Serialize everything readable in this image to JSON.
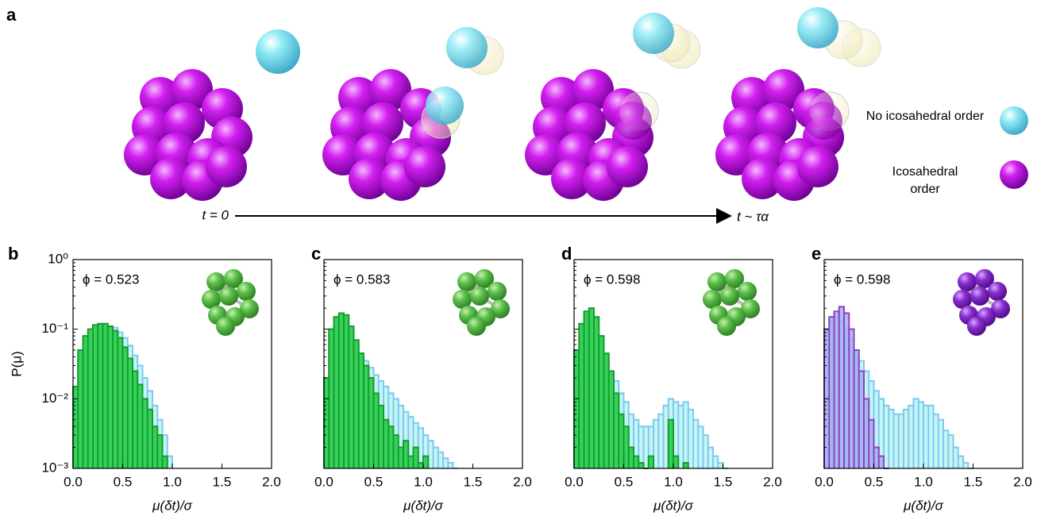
{
  "diagram": {
    "label": "a",
    "time_start": "t = 0",
    "time_end": "t ~ τα",
    "legend": [
      {
        "label": "No icosahedral order"
      },
      {
        "label": "Icosahedral order"
      }
    ]
  },
  "chart_data": [
    {
      "type": "histogram",
      "panel_label": "b",
      "annotation": "ϕ = 0.523",
      "x_label": "μ(δt)/σ",
      "y_label": "P(μ)",
      "log_y": true,
      "show_ytick_labels": true,
      "bins": [
        0,
        0.05,
        0.1,
        0.15,
        0.2,
        0.25,
        0.3,
        0.35,
        0.4,
        0.45,
        0.5,
        0.55,
        0.6,
        0.65,
        0.7,
        0.75,
        0.8,
        0.85,
        0.9,
        0.95,
        1,
        1.05,
        1.1,
        1.15,
        1.2,
        1.25,
        1.3,
        1.35,
        1.4,
        1.45,
        1.5,
        1.55,
        1.6
      ],
      "xlim": [
        0,
        2
      ],
      "ylim": [
        0.001,
        1
      ],
      "xticks": [
        {
          "value": 0,
          "label": "0.0"
        },
        0.5,
        {
          "value": 1,
          "label": "1.0"
        },
        1.5,
        {
          "value": 2,
          "label": "2.0"
        }
      ],
      "yticks": [
        {
          "value": 0.001,
          "label": "10⁻³"
        },
        {
          "value": 0.01,
          "label": "10⁻²"
        },
        {
          "value": 0.1,
          "label": "10⁻¹"
        },
        {
          "value": 1,
          "label": "10⁰"
        }
      ],
      "series": [
        {
          "color": "#c4f6f4",
          "edge_color": "#7ec8f2",
          "values": [
            0.01,
            0.035,
            0.06,
            0.08,
            0.095,
            0.105,
            0.11,
            0.11,
            0.105,
            0.09,
            0.075,
            0.058,
            0.042,
            0.03,
            0.02,
            0.013,
            0.008,
            0.005,
            0.003,
            0.0015,
            0,
            0,
            0,
            0,
            0,
            0,
            0,
            0,
            0,
            0,
            0,
            0
          ]
        },
        {
          "color": "#33d35c",
          "edge_color": "#1a9a2e",
          "values": [
            0.015,
            0.05,
            0.08,
            0.1,
            0.115,
            0.12,
            0.12,
            0.11,
            0.095,
            0.075,
            0.055,
            0.038,
            0.025,
            0.016,
            0.01,
            0.007,
            0.004,
            0.003,
            0.0015,
            0,
            0,
            0,
            0,
            0,
            0,
            0,
            0,
            0,
            0,
            0,
            0,
            0
          ]
        }
      ]
    },
    {
      "type": "histogram",
      "panel_label": "c",
      "annotation": "ϕ = 0.583",
      "x_label": "μ(δt)/σ",
      "log_y": true,
      "show_ytick_labels": false,
      "bins": [
        0,
        0.05,
        0.1,
        0.15,
        0.2,
        0.25,
        0.3,
        0.35,
        0.4,
        0.45,
        0.5,
        0.55,
        0.6,
        0.65,
        0.7,
        0.75,
        0.8,
        0.85,
        0.9,
        0.95,
        1,
        1.05,
        1.1,
        1.15,
        1.2,
        1.25,
        1.3,
        1.35,
        1.4,
        1.45,
        1.5,
        1.55,
        1.6
      ],
      "xlim": [
        0,
        2
      ],
      "ylim": [
        0.001,
        1
      ],
      "xticks": [
        {
          "value": 0,
          "label": "0.0"
        },
        0.5,
        {
          "value": 1,
          "label": "1.0"
        },
        1.5,
        {
          "value": 2,
          "label": "2.0"
        }
      ],
      "yticks": [
        0.001,
        0.01,
        0.1,
        1
      ],
      "series": [
        {
          "color": "#c4f6f4",
          "edge_color": "#7ec8f2",
          "values": [
            0.015,
            0.07,
            0.1,
            0.11,
            0.1,
            0.08,
            0.06,
            0.045,
            0.035,
            0.028,
            0.022,
            0.018,
            0.015,
            0.012,
            0.01,
            0.008,
            0.0065,
            0.0055,
            0.0045,
            0.0038,
            0.003,
            0.0025,
            0.002,
            0.0017,
            0.0014,
            0.0012,
            0.001,
            0,
            0,
            0,
            0,
            0
          ]
        },
        {
          "color": "#33d35c",
          "edge_color": "#1a9a2e",
          "values": [
            0.02,
            0.1,
            0.15,
            0.17,
            0.16,
            0.11,
            0.07,
            0.045,
            0.03,
            0.02,
            0.012,
            0.008,
            0.005,
            0.004,
            0.003,
            0.002,
            0.0025,
            0.0015,
            0.002,
            0.0012,
            0.0015,
            0,
            0,
            0,
            0,
            0,
            0,
            0,
            0,
            0,
            0,
            0
          ]
        }
      ]
    },
    {
      "type": "histogram",
      "panel_label": "d",
      "annotation": "ϕ = 0.598",
      "x_label": "μ(δt)/σ",
      "log_y": true,
      "show_ytick_labels": false,
      "bins": [
        0,
        0.05,
        0.1,
        0.15,
        0.2,
        0.25,
        0.3,
        0.35,
        0.4,
        0.45,
        0.5,
        0.55,
        0.6,
        0.65,
        0.7,
        0.75,
        0.8,
        0.85,
        0.9,
        0.95,
        1,
        1.05,
        1.1,
        1.15,
        1.2,
        1.25,
        1.3,
        1.35,
        1.4,
        1.45,
        1.5,
        1.55,
        1.6
      ],
      "xlim": [
        0,
        2
      ],
      "ylim": [
        0.001,
        1
      ],
      "xticks": [
        {
          "value": 0,
          "label": "0.0"
        },
        0.5,
        {
          "value": 1,
          "label": "1.0"
        },
        1.5,
        {
          "value": 2,
          "label": "2.0"
        }
      ],
      "yticks": [
        0.001,
        0.01,
        0.1,
        1
      ],
      "series": [
        {
          "color": "#c4f6f4",
          "edge_color": "#7ec8f2",
          "values": [
            0.03,
            0.08,
            0.11,
            0.1,
            0.08,
            0.05,
            0.035,
            0.025,
            0.018,
            0.012,
            0.009,
            0.006,
            0.005,
            0.004,
            0.004,
            0.004,
            0.005,
            0.006,
            0.008,
            0.01,
            0.009,
            0.008,
            0.009,
            0.007,
            0.005,
            0.004,
            0.003,
            0.002,
            0.0015,
            0.0012,
            0.001,
            0
          ]
        },
        {
          "color": "#33d35c",
          "edge_color": "#1a9a2e",
          "values": [
            0.05,
            0.12,
            0.18,
            0.2,
            0.15,
            0.08,
            0.045,
            0.025,
            0.012,
            0.006,
            0.004,
            0.002,
            0.0015,
            0.0012,
            0.001,
            0.0015,
            0,
            0,
            0,
            0.005,
            0.0015,
            0,
            0.0012,
            0,
            0,
            0,
            0,
            0,
            0,
            0,
            0,
            0
          ]
        }
      ]
    },
    {
      "type": "histogram",
      "panel_label": "e",
      "annotation": "ϕ = 0.598",
      "x_label": "μ(δt)/σ",
      "log_y": true,
      "show_ytick_labels": false,
      "bins": [
        0,
        0.05,
        0.1,
        0.15,
        0.2,
        0.25,
        0.3,
        0.35,
        0.4,
        0.45,
        0.5,
        0.55,
        0.6,
        0.65,
        0.7,
        0.75,
        0.8,
        0.85,
        0.9,
        0.95,
        1,
        1.05,
        1.1,
        1.15,
        1.2,
        1.25,
        1.3,
        1.35,
        1.4,
        1.45,
        1.5,
        1.55,
        1.6
      ],
      "xlim": [
        0,
        2
      ],
      "ylim": [
        0.001,
        1
      ],
      "xticks": [
        {
          "value": 0,
          "label": "0.0"
        },
        0.5,
        {
          "value": 1,
          "label": "1.0"
        },
        1.5,
        {
          "value": 2,
          "label": "2.0"
        }
      ],
      "yticks": [
        0.001,
        0.01,
        0.1,
        1
      ],
      "series": [
        {
          "color": "#c4f6f4",
          "edge_color": "#7ec8f2",
          "values": [
            0.09,
            0.13,
            0.15,
            0.13,
            0.1,
            0.07,
            0.05,
            0.035,
            0.025,
            0.018,
            0.013,
            0.01,
            0.008,
            0.007,
            0.006,
            0.006,
            0.007,
            0.008,
            0.01,
            0.009,
            0.008,
            0.008,
            0.006,
            0.005,
            0.0035,
            0.003,
            0.002,
            0.0015,
            0.0012,
            0.001,
            0,
            0
          ]
        },
        {
          "color": "#9eaaf2",
          "edge_color": "#9040c0",
          "values": [
            0.1,
            0.15,
            0.18,
            0.21,
            0.17,
            0.1,
            0.05,
            0.025,
            0.01,
            0.005,
            0.002,
            0.0015,
            0.001,
            0,
            0,
            0,
            0,
            0,
            0,
            0,
            0,
            0,
            0,
            0,
            0,
            0,
            0,
            0,
            0,
            0,
            0,
            0
          ]
        }
      ]
    }
  ]
}
